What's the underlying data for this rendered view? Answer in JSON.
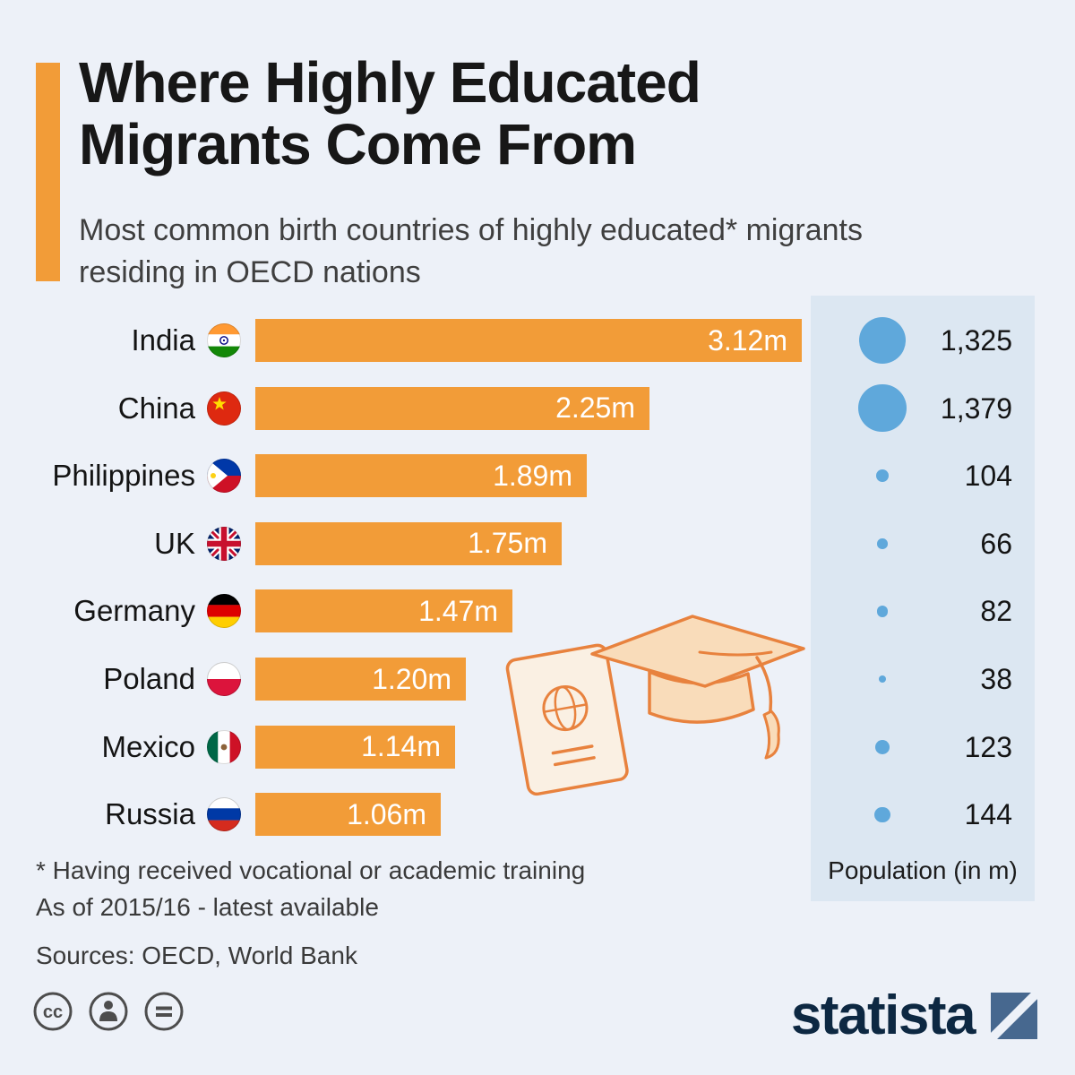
{
  "page": {
    "background_color": "#edf1f8",
    "band_background_color": "#dce7f2"
  },
  "header": {
    "title_line1": "Where Highly Educated",
    "title_line2": "Migrants Come From",
    "subtitle": "Most common birth countries of highly educated* migrants residing in OECD nations"
  },
  "chart_data": {
    "type": "bar",
    "orientation": "horizontal",
    "title": "Where Highly Educated Migrants Come From",
    "subtitle": "Most common birth countries of highly educated* migrants residing in OECD nations",
    "categories": [
      "India",
      "China",
      "Philippines",
      "UK",
      "Germany",
      "Poland",
      "Mexico",
      "Russia"
    ],
    "series": [
      {
        "name": "Highly educated migrants",
        "unit": "millions",
        "values": [
          3.12,
          2.25,
          1.89,
          1.75,
          1.47,
          1.2,
          1.14,
          1.06
        ],
        "labels": [
          "3.12m",
          "2.25m",
          "1.89m",
          "1.75m",
          "1.47m",
          "1.20m",
          "1.14m",
          "1.06m"
        ]
      },
      {
        "name": "Population (in m)",
        "unit": "millions",
        "values": [
          1325,
          1379,
          104,
          66,
          82,
          38,
          123,
          144
        ],
        "labels": [
          "1,325",
          "1,379",
          "104",
          "66",
          "82",
          "38",
          "123",
          "144"
        ]
      }
    ],
    "flags": [
      "india-flag",
      "china-flag",
      "philippines-flag",
      "uk-flag",
      "germany-flag",
      "poland-flag",
      "mexico-flag",
      "russia-flag"
    ],
    "xlim": [
      0,
      3.12
    ],
    "bar_color": "#F29C38",
    "bubble_color": "#5FA8DB",
    "population_column_label": "Population (in m)",
    "legend_position": "none",
    "grid": false
  },
  "footnotes": {
    "line1": "* Having received vocational or academic training",
    "line2": "As of 2015/16 - latest available",
    "sources": "Sources: OECD, World Bank"
  },
  "footer": {
    "license_icons": [
      "cc-icon",
      "attribution-person-icon",
      "no-derivatives-equals-icon"
    ],
    "brand": "statista"
  }
}
